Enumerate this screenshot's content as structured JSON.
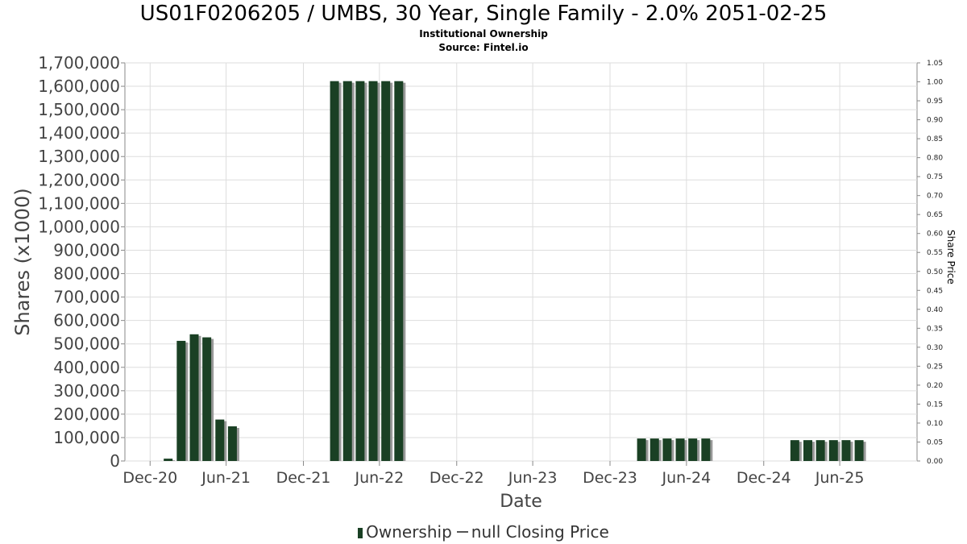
{
  "chart_data": {
    "type": "bar",
    "title": "US01F0206205 / UMBS, 30 Year, Single Family - 2.0% 2051-02-25",
    "subtitle_1": "Institutional Ownership",
    "subtitle_2": "Source: Fintel.io",
    "xlabel": "Date",
    "ylabel": "Shares (x1000)",
    "y2label": "Share Price",
    "ylim": [
      0,
      1700000
    ],
    "y2lim": [
      0,
      1.05
    ],
    "xlim": [
      "2020-11-01",
      "2025-12-31"
    ],
    "grid": true,
    "x_ticks": [
      {
        "date": "2020-12-31",
        "label": "Dec-20"
      },
      {
        "date": "2021-06-30",
        "label": "Jun-21"
      },
      {
        "date": "2021-12-31",
        "label": "Dec-21"
      },
      {
        "date": "2022-06-30",
        "label": "Jun-22"
      },
      {
        "date": "2022-12-31",
        "label": "Dec-22"
      },
      {
        "date": "2023-06-30",
        "label": "Jun-23"
      },
      {
        "date": "2023-12-31",
        "label": "Dec-23"
      },
      {
        "date": "2024-06-30",
        "label": "Jun-24"
      },
      {
        "date": "2024-12-31",
        "label": "Dec-24"
      },
      {
        "date": "2025-06-30",
        "label": "Jun-25"
      }
    ],
    "y_ticks": [
      "0",
      "100,000",
      "200,000",
      "300,000",
      "400,000",
      "500,000",
      "600,000",
      "700,000",
      "800,000",
      "900,000",
      "1,000,000",
      "1,100,000",
      "1,200,000",
      "1,300,000",
      "1,400,000",
      "1,500,000",
      "1,600,000",
      "1,700,000"
    ],
    "y2_ticks": [
      "0.00",
      "0.05",
      "0.10",
      "0.15",
      "0.20",
      "0.25",
      "0.30",
      "0.35",
      "0.40",
      "0.45",
      "0.50",
      "0.55",
      "0.60",
      "0.65",
      "0.70",
      "0.75",
      "0.80",
      "0.85",
      "0.90",
      "0.95",
      "1.00",
      "1.05"
    ],
    "series": [
      {
        "name": "Ownership",
        "color": "#1a4024",
        "points": [
          {
            "x": "2021-02-12",
            "y": 10000
          },
          {
            "x": "2021-03-15",
            "y": 513000
          },
          {
            "x": "2021-04-15",
            "y": 541000
          },
          {
            "x": "2021-05-15",
            "y": 528000
          },
          {
            "x": "2021-06-15",
            "y": 177000
          },
          {
            "x": "2021-07-15",
            "y": 148000
          },
          {
            "x": "2022-03-15",
            "y": 1622000
          },
          {
            "x": "2022-04-15",
            "y": 1622000
          },
          {
            "x": "2022-05-15",
            "y": 1622000
          },
          {
            "x": "2022-06-15",
            "y": 1622000
          },
          {
            "x": "2022-07-15",
            "y": 1622000
          },
          {
            "x": "2022-08-15",
            "y": 1622000
          },
          {
            "x": "2024-03-15",
            "y": 96000
          },
          {
            "x": "2024-04-15",
            "y": 96000
          },
          {
            "x": "2024-05-15",
            "y": 96000
          },
          {
            "x": "2024-06-15",
            "y": 96000
          },
          {
            "x": "2024-07-15",
            "y": 96000
          },
          {
            "x": "2024-08-15",
            "y": 96000
          },
          {
            "x": "2025-03-15",
            "y": 89000
          },
          {
            "x": "2025-04-15",
            "y": 89000
          },
          {
            "x": "2025-05-15",
            "y": 89000
          },
          {
            "x": "2025-06-15",
            "y": 89000
          },
          {
            "x": "2025-07-15",
            "y": 89000
          },
          {
            "x": "2025-08-15",
            "y": 89000
          }
        ]
      },
      {
        "name": "null Closing Price",
        "color": "#555555",
        "points": []
      }
    ],
    "legend": {
      "placement": "bottom",
      "ownership_label": "Ownership",
      "price_label": "null Closing Price"
    }
  }
}
